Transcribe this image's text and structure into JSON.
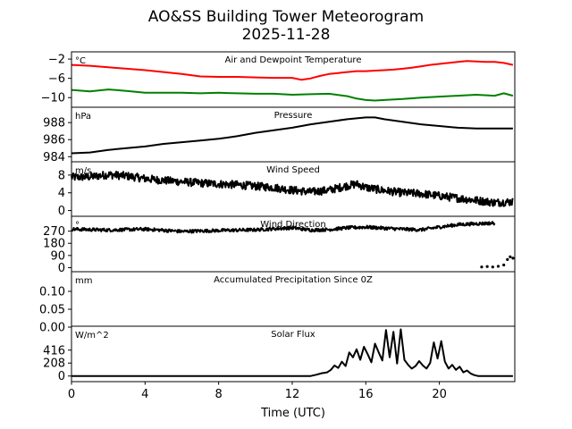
{
  "figure": {
    "title_line1": "AO&SS Building Tower Meteorogram",
    "title_line2": "2025-11-28",
    "xlabel": "Time (UTC)"
  },
  "chart_data": {
    "type": "line",
    "x_axis": {
      "range": [
        0,
        24.1
      ],
      "ticks": [
        0,
        4,
        8,
        12,
        16,
        20
      ],
      "tick_labels": [
        "0",
        "4",
        "8",
        "12",
        "16",
        "20"
      ]
    },
    "panels": [
      {
        "id": "temperature",
        "title": "Air and Dewpoint Temperature",
        "unit": "°C",
        "ylim": [
          -12.0,
          -0.5
        ],
        "yticks": [
          -2,
          -6,
          -10
        ],
        "ytick_labels": [
          "−2",
          "−6",
          "−10"
        ],
        "series": [
          {
            "name": "Air Temperature",
            "color": "#ff0000",
            "style": "line",
            "x": [
              0,
              1,
              2,
              3,
              4,
              5,
              6,
              7,
              8,
              9,
              10,
              11,
              12,
              12.5,
              13,
              13.5,
              14,
              14.5,
              15,
              15.5,
              16,
              16.5,
              17,
              17.5,
              18,
              18.5,
              19,
              19.5,
              20,
              20.5,
              21,
              21.5,
              22,
              22.5,
              23,
              23.5,
              24
            ],
            "values": [
              -3.2,
              -3.4,
              -3.7,
              -4.0,
              -4.3,
              -4.7,
              -5.1,
              -5.6,
              -5.7,
              -5.7,
              -5.8,
              -5.9,
              -5.9,
              -6.3,
              -6.0,
              -5.5,
              -5.1,
              -4.9,
              -4.7,
              -4.5,
              -4.5,
              -4.4,
              -4.3,
              -4.2,
              -4.0,
              -3.8,
              -3.5,
              -3.2,
              -3.0,
              -2.8,
              -2.6,
              -2.4,
              -2.5,
              -2.6,
              -2.6,
              -2.8,
              -3.2
            ]
          },
          {
            "name": "Dewpoint",
            "color": "#008000",
            "style": "line",
            "x": [
              0,
              1,
              2,
              3,
              4,
              5,
              6,
              7,
              8,
              9,
              10,
              11,
              12,
              13,
              14,
              15,
              15.5,
              16,
              16.5,
              17,
              18,
              19,
              20,
              21,
              22,
              23,
              23.5,
              24
            ],
            "values": [
              -8.4,
              -8.7,
              -8.3,
              -8.6,
              -9.0,
              -9.0,
              -9.0,
              -9.1,
              -9.0,
              -9.1,
              -9.2,
              -9.2,
              -9.4,
              -9.3,
              -9.2,
              -9.7,
              -10.2,
              -10.5,
              -10.6,
              -10.5,
              -10.3,
              -10.0,
              -9.8,
              -9.6,
              -9.4,
              -9.6,
              -9.1,
              -9.6
            ]
          }
        ]
      },
      {
        "id": "pressure",
        "title": "Pressure",
        "unit": "hPa",
        "ylim": [
          983.3,
          989.8
        ],
        "yticks": [
          984,
          986,
          988
        ],
        "ytick_labels": [
          "984",
          "986",
          "988"
        ],
        "series": [
          {
            "name": "Pressure",
            "color": "#000000",
            "style": "line",
            "x": [
              0,
              1,
              2,
              3,
              4,
              5,
              6,
              7,
              8,
              9,
              10,
              11,
              12,
              13,
              14,
              15,
              16,
              16.5,
              17,
              18,
              19,
              20,
              21,
              22,
              23,
              24
            ],
            "values": [
              984.4,
              984.5,
              984.8,
              985.0,
              985.2,
              985.5,
              985.7,
              985.9,
              986.1,
              986.4,
              986.8,
              987.1,
              987.4,
              987.8,
              988.1,
              988.4,
              988.6,
              988.6,
              988.4,
              988.1,
              987.8,
              987.6,
              987.4,
              987.3,
              987.3,
              987.3
            ]
          }
        ]
      },
      {
        "id": "wind_speed",
        "title": "Wind Speed",
        "unit": "m/s",
        "ylim": [
          -1.5,
          11.0
        ],
        "yticks": [
          0,
          4,
          8
        ],
        "ytick_labels": [
          "0",
          "4",
          "8"
        ],
        "series": [
          {
            "name": "Wind Speed",
            "color": "#000000",
            "style": "noisy-line",
            "x": [
              0,
              1,
              2,
              3,
              4,
              5,
              6,
              7,
              8,
              9,
              10,
              11,
              12,
              13,
              14,
              15,
              15.5,
              16,
              17,
              18,
              19,
              20,
              21,
              22,
              23,
              24
            ],
            "values": [
              7.5,
              7.6,
              8.1,
              7.8,
              7.2,
              6.8,
              6.5,
              6.2,
              6.0,
              5.8,
              5.5,
              5.2,
              4.6,
              4.2,
              4.6,
              5.6,
              6.0,
              5.2,
              4.5,
              4.0,
              3.8,
              3.3,
              2.8,
              2.3,
              1.8,
              2.0
            ],
            "jitter": 0.9
          }
        ]
      },
      {
        "id": "wind_direction",
        "title": "Wind Direction",
        "unit": "°",
        "ylim": [
          -30,
          380
        ],
        "yticks": [
          0,
          90,
          180,
          270
        ],
        "ytick_labels": [
          "0",
          "90",
          "180",
          "270"
        ],
        "series": [
          {
            "name": "Wind Direction",
            "color": "#000000",
            "style": "noisy-line",
            "x": [
              0,
              2,
              4,
              6,
              8,
              10,
              12,
              13,
              14,
              15,
              16,
              17,
              18,
              19,
              20,
              21,
              22,
              23
            ],
            "values": [
              285,
              278,
              285,
              268,
              275,
              280,
              295,
              278,
              282,
              295,
              300,
              292,
              285,
              280,
              300,
              318,
              325,
              330
            ],
            "jitter": 12
          },
          {
            "name": "Wind Direction (wrapped)",
            "color": "#000000",
            "style": "dots",
            "x": [
              22.3,
              22.6,
              22.9,
              23.2,
              23.5,
              23.7,
              23.85,
              24.0
            ],
            "values": [
              5,
              8,
              5,
              10,
              20,
              60,
              80,
              70
            ]
          }
        ]
      },
      {
        "id": "precipitation",
        "title": "Accumulated Precipitation Since 0Z",
        "unit": "mm",
        "ylim": [
          0.0,
          0.155
        ],
        "yticks": [
          0.0,
          0.05,
          0.1
        ],
        "ytick_labels": [
          "0.00",
          "0.05",
          "0.10"
        ],
        "series": [
          {
            "name": "Accumulated Precipitation",
            "color": "#000000",
            "style": "line",
            "x": [
              0,
              24
            ],
            "values": [
              0.0,
              0.0
            ]
          }
        ]
      },
      {
        "id": "solar",
        "title": "Solar Flux",
        "unit": "W/m^2",
        "ylim": [
          -90,
          800
        ],
        "yticks": [
          0,
          208,
          416
        ],
        "ytick_labels": [
          "0",
          "208",
          "416"
        ],
        "series": [
          {
            "name": "Solar Flux",
            "color": "#000000",
            "style": "line",
            "x": [
              0,
              13.0,
              13.3,
              13.6,
              13.9,
              14.1,
              14.3,
              14.5,
              14.7,
              14.9,
              15.1,
              15.3,
              15.5,
              15.7,
              15.9,
              16.1,
              16.3,
              16.5,
              16.7,
              16.9,
              17.1,
              17.3,
              17.5,
              17.7,
              17.9,
              18.1,
              18.3,
              18.5,
              18.7,
              18.9,
              19.1,
              19.3,
              19.5,
              19.7,
              19.9,
              20.1,
              20.3,
              20.5,
              20.7,
              20.9,
              21.1,
              21.3,
              21.5,
              21.7,
              21.9,
              22.1,
              22.4,
              24.0
            ],
            "values": [
              0,
              0,
              20,
              45,
              60,
              100,
              170,
              130,
              230,
              160,
              380,
              300,
              430,
              260,
              470,
              350,
              220,
              520,
              380,
              250,
              740,
              300,
              710,
              200,
              750,
              260,
              180,
              120,
              160,
              240,
              170,
              120,
              210,
              540,
              280,
              560,
              230,
              120,
              180,
              100,
              150,
              60,
              90,
              40,
              15,
              0,
              0,
              0
            ]
          }
        ]
      }
    ]
  }
}
